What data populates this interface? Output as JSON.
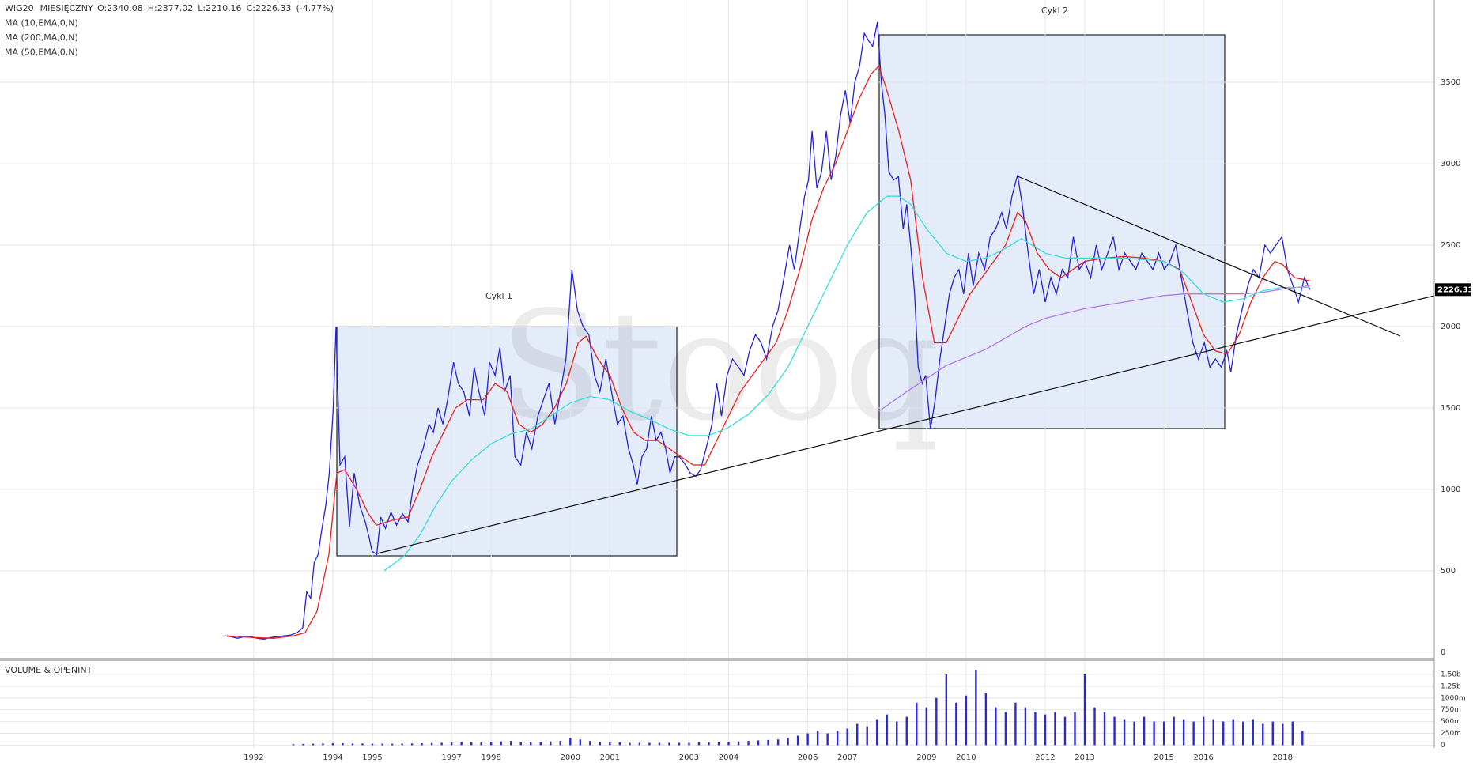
{
  "chart_data": [
    {
      "type": "line",
      "title": "WIG20",
      "subtitle": "MIESIĘCZNY",
      "ohlc_labels": [
        "O:2340.08",
        "H:2377.02",
        "L:2210.16",
        "C:2226.33"
      ],
      "change_label": "(-4.77%)",
      "annotations": [
        "Cykl 1",
        "Cykl 2"
      ],
      "watermark": "Stooq",
      "xlim": [
        1985.59,
        2021.83
      ],
      "ylim": [
        -35,
        4005
      ],
      "xticks": [
        1992,
        1994,
        1995,
        1997,
        1998,
        2000,
        2001,
        2003,
        2004,
        2006,
        2007,
        2009,
        2010,
        2012,
        2013,
        2015,
        2016,
        2018
      ],
      "yticks": [
        0,
        500,
        1000,
        1500,
        2000,
        2500,
        3000,
        3500
      ],
      "grid": true,
      "series": [
        {
          "color": "#2323d8",
          "x": [
            1991.26,
            1991.43,
            1991.59,
            1991.76,
            1991.93,
            1992.1,
            1992.26,
            1992.43,
            1992.6,
            1992.77,
            1992.93,
            1993.1,
            1993.24,
            1993.34,
            1993.44,
            1993.53,
            1993.63,
            1993.72,
            1993.82,
            1993.91,
            1994.01,
            1994.08,
            1994.18,
            1994.3,
            1994.42,
            1994.54,
            1994.68,
            1994.82,
            1994.92,
            1994.99,
            1995.11,
            1995.21,
            1995.33,
            1995.47,
            1995.61,
            1995.76,
            1995.9,
            1996.02,
            1996.14,
            1996.28,
            1996.43,
            1996.54,
            1996.66,
            1996.78,
            1996.9,
            1997.05,
            1997.17,
            1997.31,
            1997.45,
            1997.57,
            1997.69,
            1997.84,
            1997.96,
            1998.1,
            1998.22,
            1998.34,
            1998.48,
            1998.6,
            1998.75,
            1998.89,
            1999.03,
            1999.18,
            1999.32,
            1999.46,
            1999.61,
            1999.75,
            1999.89,
            2000.04,
            2000.18,
            2000.32,
            2000.47,
            2000.61,
            2000.75,
            2000.9,
            2001.04,
            2001.19,
            2001.33,
            2001.47,
            2001.59,
            2001.69,
            2001.81,
            2001.93,
            2002.05,
            2002.17,
            2002.29,
            2002.41,
            2002.52,
            2002.64,
            2002.76,
            2002.91,
            2003.03,
            2003.17,
            2003.29,
            2003.43,
            2003.58,
            2003.7,
            2003.82,
            2003.96,
            2004.1,
            2004.25,
            2004.39,
            2004.53,
            2004.68,
            2004.82,
            2004.96,
            2005.11,
            2005.25,
            2005.4,
            2005.54,
            2005.66,
            2005.8,
            2005.92,
            2006.02,
            2006.11,
            2006.23,
            2006.35,
            2006.47,
            2006.59,
            2006.71,
            2006.83,
            2006.95,
            2007.07,
            2007.19,
            2007.31,
            2007.43,
            2007.55,
            2007.64,
            2007.76,
            2007.86,
            2007.95,
            2008.05,
            2008.17,
            2008.29,
            2008.41,
            2008.5,
            2008.6,
            2008.7,
            2008.79,
            2008.89,
            2008.98,
            2009.1,
            2009.22,
            2009.34,
            2009.46,
            2009.58,
            2009.7,
            2009.82,
            2009.94,
            2010.06,
            2010.18,
            2010.32,
            2010.47,
            2010.61,
            2010.75,
            2010.9,
            2011.02,
            2011.16,
            2011.3,
            2011.42,
            2011.57,
            2011.71,
            2011.85,
            2012.0,
            2012.14,
            2012.28,
            2012.43,
            2012.57,
            2012.71,
            2012.86,
            2013.0,
            2013.15,
            2013.29,
            2013.43,
            2013.58,
            2013.72,
            2013.86,
            2014.01,
            2014.15,
            2014.29,
            2014.44,
            2014.58,
            2014.72,
            2014.87,
            2015.01,
            2015.15,
            2015.3,
            2015.44,
            2015.58,
            2015.73,
            2015.87,
            2016.02,
            2016.16,
            2016.3,
            2016.45,
            2016.59,
            2016.69,
            2016.83,
            2016.97,
            2017.12,
            2017.26,
            2017.4,
            2017.55,
            2017.69,
            2017.83,
            2017.98,
            2018.12,
            2018.26,
            2018.4,
            2018.55,
            2018.69
          ],
          "values": [
            100,
            95,
            85,
            95,
            95,
            85,
            80,
            90,
            95,
            100,
            105,
            120,
            150,
            370,
            330,
            550,
            600,
            750,
            900,
            1100,
            1500,
            2000,
            1150,
            1200,
            770,
            1100,
            900,
            800,
            700,
            620,
            600,
            830,
            760,
            860,
            780,
            850,
            800,
            1000,
            1150,
            1250,
            1400,
            1350,
            1500,
            1400,
            1550,
            1780,
            1650,
            1600,
            1450,
            1750,
            1600,
            1450,
            1780,
            1700,
            1870,
            1600,
            1700,
            1200,
            1150,
            1350,
            1250,
            1450,
            1550,
            1650,
            1400,
            1600,
            1800,
            2350,
            2100,
            2000,
            1950,
            1700,
            1600,
            1800,
            1600,
            1400,
            1450,
            1250,
            1150,
            1030,
            1200,
            1250,
            1450,
            1300,
            1350,
            1250,
            1100,
            1200,
            1200,
            1150,
            1100,
            1080,
            1120,
            1250,
            1400,
            1650,
            1450,
            1700,
            1800,
            1750,
            1700,
            1850,
            1950,
            1900,
            1800,
            2000,
            2100,
            2300,
            2500,
            2350,
            2600,
            2800,
            2900,
            3200,
            2850,
            2950,
            3200,
            2900,
            3050,
            3300,
            3450,
            3250,
            3500,
            3600,
            3800,
            3750,
            3720,
            3870,
            3500,
            3300,
            2950,
            2900,
            2920,
            2600,
            2750,
            2500,
            2200,
            1750,
            1650,
            1700,
            1370,
            1550,
            1800,
            2000,
            2200,
            2300,
            2350,
            2200,
            2450,
            2250,
            2450,
            2350,
            2550,
            2600,
            2700,
            2600,
            2800,
            2930,
            2750,
            2450,
            2200,
            2350,
            2150,
            2300,
            2200,
            2350,
            2300,
            2550,
            2350,
            2400,
            2300,
            2500,
            2350,
            2450,
            2550,
            2350,
            2450,
            2400,
            2350,
            2450,
            2400,
            2350,
            2450,
            2350,
            2400,
            2500,
            2300,
            2100,
            1900,
            1800,
            1900,
            1750,
            1800,
            1750,
            1850,
            1720,
            1950,
            2100,
            2250,
            2350,
            2300,
            2500,
            2450,
            2500,
            2550,
            2350,
            2250,
            2150,
            2300,
            2226.33
          ]
        },
        {
          "name": "MA (10,EMA,0,N)",
          "color": "#e82020",
          "x": [
            1991.3,
            1992.0,
            1992.5,
            1993.0,
            1993.3,
            1993.6,
            1993.9,
            1994.1,
            1994.3,
            1994.6,
            1994.9,
            1995.1,
            1995.5,
            1995.9,
            1996.2,
            1996.5,
            1996.8,
            1997.1,
            1997.4,
            1997.8,
            1998.1,
            1998.4,
            1998.7,
            1999.0,
            1999.3,
            1999.6,
            1999.9,
            2000.2,
            2000.4,
            2000.7,
            2001.0,
            2001.3,
            2001.6,
            2001.9,
            2002.2,
            2002.5,
            2002.8,
            2003.1,
            2003.4,
            2003.7,
            2004.0,
            2004.3,
            2004.6,
            2004.9,
            2005.2,
            2005.5,
            2005.8,
            2006.1,
            2006.4,
            2006.7,
            2007.0,
            2007.3,
            2007.6,
            2007.8,
            2008.0,
            2008.3,
            2008.6,
            2008.9,
            2009.2,
            2009.5,
            2009.8,
            2010.1,
            2010.4,
            2010.7,
            2011.0,
            2011.3,
            2011.5,
            2011.8,
            2012.1,
            2012.4,
            2012.7,
            2013.0,
            2013.5,
            2014.0,
            2014.5,
            2015.0,
            2015.4,
            2015.7,
            2016.0,
            2016.3,
            2016.6,
            2016.9,
            2017.2,
            2017.5,
            2017.8,
            2018.0,
            2018.3,
            2018.69
          ],
          "values": [
            100,
            90,
            85,
            100,
            120,
            250,
            600,
            1100,
            1120,
            1000,
            850,
            780,
            810,
            830,
            1000,
            1200,
            1350,
            1500,
            1550,
            1550,
            1650,
            1600,
            1400,
            1350,
            1400,
            1500,
            1650,
            1900,
            1940,
            1800,
            1700,
            1500,
            1350,
            1300,
            1300,
            1250,
            1200,
            1150,
            1150,
            1300,
            1450,
            1600,
            1700,
            1800,
            1900,
            2100,
            2350,
            2650,
            2850,
            3000,
            3200,
            3400,
            3550,
            3600,
            3450,
            3200,
            2900,
            2300,
            1900,
            1900,
            2050,
            2200,
            2300,
            2400,
            2500,
            2700,
            2650,
            2450,
            2350,
            2300,
            2350,
            2400,
            2420,
            2430,
            2420,
            2400,
            2350,
            2150,
            1950,
            1850,
            1830,
            1950,
            2150,
            2300,
            2400,
            2380,
            2300,
            2280
          ]
        },
        {
          "name": "MA (200,MA,0,N)",
          "color": "#b07ae6",
          "x": [
            2007.8,
            2008.5,
            2009.0,
            2009.5,
            2010.0,
            2010.5,
            2011.0,
            2011.5,
            2012.0,
            2012.5,
            2013.0,
            2013.5,
            2014.0,
            2014.5,
            2015.0,
            2015.5,
            2016.0,
            2016.5,
            2017.0,
            2017.5,
            2018.0,
            2018.69
          ],
          "values": [
            1480,
            1600,
            1680,
            1760,
            1810,
            1860,
            1930,
            2000,
            2050,
            2080,
            2110,
            2130,
            2150,
            2170,
            2190,
            2200,
            2200,
            2200,
            2200,
            2210,
            2230,
            2250
          ]
        },
        {
          "name": "MA (50,EMA,0,N)",
          "color": "#36dede",
          "x": [
            1995.3,
            1995.8,
            1996.2,
            1996.6,
            1997.0,
            1997.5,
            1998.0,
            1998.5,
            1999.0,
            1999.5,
            2000.0,
            2000.5,
            2001.0,
            2001.5,
            2002.0,
            2002.5,
            2003.0,
            2003.5,
            2004.0,
            2004.5,
            2005.0,
            2005.5,
            2006.0,
            2006.5,
            2007.0,
            2007.5,
            2008.0,
            2008.3,
            2008.6,
            2009.0,
            2009.5,
            2010.0,
            2010.5,
            2011.0,
            2011.4,
            2012.0,
            2012.5,
            2013.0,
            2014.0,
            2015.0,
            2015.5,
            2016.0,
            2016.5,
            2017.0,
            2017.5,
            2018.0,
            2018.69
          ],
          "values": [
            500,
            590,
            720,
            900,
            1050,
            1180,
            1280,
            1340,
            1370,
            1450,
            1530,
            1570,
            1550,
            1480,
            1430,
            1370,
            1330,
            1330,
            1380,
            1460,
            1580,
            1750,
            2000,
            2250,
            2500,
            2700,
            2800,
            2800,
            2750,
            2600,
            2450,
            2400,
            2420,
            2480,
            2540,
            2450,
            2420,
            2420,
            2420,
            2400,
            2330,
            2200,
            2150,
            2170,
            2220,
            2240,
            2240
          ]
        }
      ]
    },
    {
      "type": "bar",
      "title": "VOLUME & OPENINT",
      "color": "#2a2ad0",
      "ylim": [
        -60,
        1750
      ],
      "yticks": [
        0,
        {
          "value": 250,
          "label": "250m"
        },
        {
          "value": 500,
          "label": "500m"
        },
        {
          "value": 750,
          "label": "750m"
        },
        {
          "value": 1000,
          "label": "1000m"
        },
        {
          "value": 1250,
          "label": "1.25b"
        },
        {
          "value": 1500,
          "label": "1.50b"
        }
      ],
      "x": [
        1993.0,
        1993.25,
        1993.5,
        1993.75,
        1994.0,
        1994.25,
        1994.5,
        1994.75,
        1995.0,
        1995.25,
        1995.5,
        1995.75,
        1996.0,
        1996.25,
        1996.5,
        1996.75,
        1997.0,
        1997.25,
        1997.5,
        1997.75,
        1998.0,
        1998.25,
        1998.5,
        1998.75,
        1999.0,
        1999.25,
        1999.5,
        1999.75,
        2000.0,
        2000.25,
        2000.5,
        2000.75,
        2001.0,
        2001.25,
        2001.5,
        2001.75,
        2002.0,
        2002.25,
        2002.5,
        2002.75,
        2003.0,
        2003.25,
        2003.5,
        2003.75,
        2004.0,
        2004.25,
        2004.5,
        2004.75,
        2005.0,
        2005.25,
        2005.5,
        2005.75,
        2006.0,
        2006.25,
        2006.5,
        2006.75,
        2007.0,
        2007.25,
        2007.5,
        2007.75,
        2008.0,
        2008.25,
        2008.5,
        2008.75,
        2009.0,
        2009.25,
        2009.5,
        2009.75,
        2010.0,
        2010.25,
        2010.5,
        2010.75,
        2011.0,
        2011.25,
        2011.5,
        2011.75,
        2012.0,
        2012.25,
        2012.5,
        2012.75,
        2013.0,
        2013.25,
        2013.5,
        2013.75,
        2014.0,
        2014.25,
        2014.5,
        2014.75,
        2015.0,
        2015.25,
        2015.5,
        2015.75,
        2016.0,
        2016.25,
        2016.5,
        2016.75,
        2017.0,
        2017.25,
        2017.5,
        2017.75,
        2018.0,
        2018.25,
        2018.5
      ],
      "values": [
        20,
        25,
        30,
        35,
        40,
        40,
        35,
        35,
        30,
        30,
        30,
        35,
        35,
        40,
        45,
        50,
        60,
        70,
        60,
        60,
        70,
        80,
        90,
        60,
        60,
        70,
        80,
        90,
        150,
        120,
        90,
        70,
        60,
        60,
        50,
        50,
        50,
        50,
        50,
        50,
        50,
        60,
        60,
        70,
        70,
        80,
        90,
        100,
        110,
        120,
        150,
        200,
        250,
        300,
        250,
        300,
        350,
        450,
        400,
        550,
        650,
        500,
        600,
        900,
        800,
        1000,
        1500,
        900,
        1050,
        1600,
        1100,
        800,
        700,
        900,
        800,
        700,
        650,
        700,
        600,
        700,
        1500,
        800,
        700,
        600,
        550,
        500,
        600,
        500,
        500,
        600,
        550,
        500,
        600,
        550,
        500,
        550,
        500,
        550,
        450,
        500,
        450,
        500,
        300
      ]
    }
  ]
}
